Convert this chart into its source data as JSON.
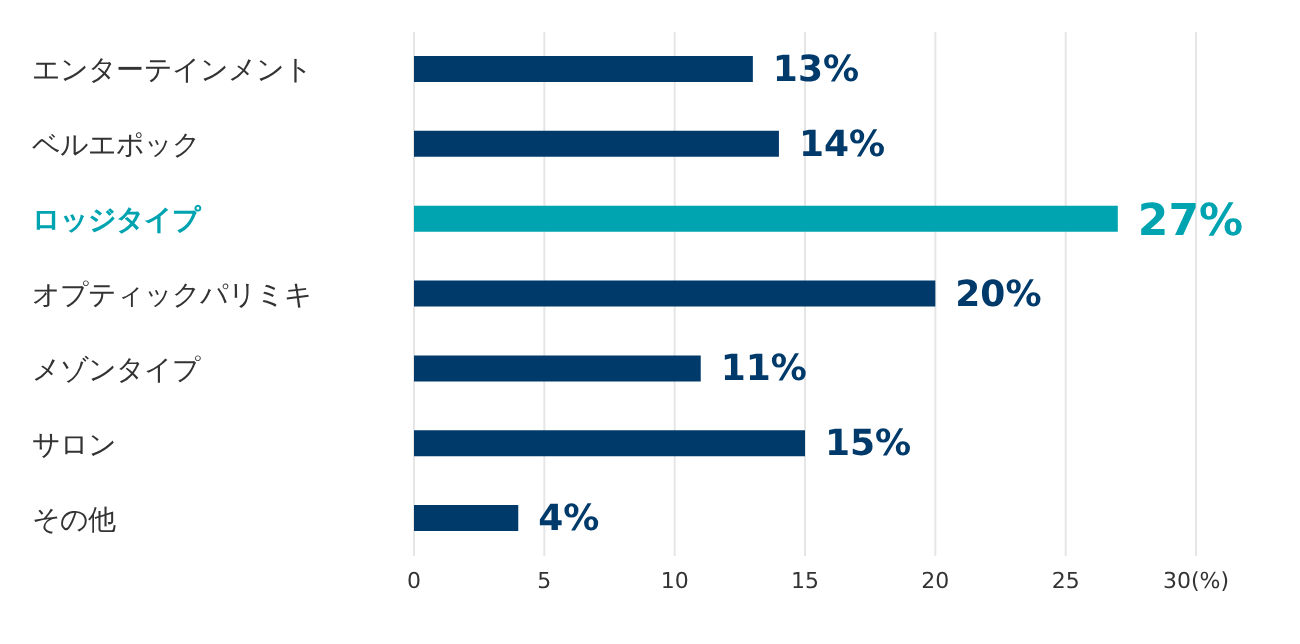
{
  "chart_data": {
    "type": "bar",
    "orientation": "horizontal",
    "categories": [
      "エンターテインメント",
      "ベルエポック",
      "ロッジタイプ",
      "オプティックパリミキ",
      "メゾンタイプ",
      "サロン",
      "その他"
    ],
    "values": [
      13,
      14,
      27,
      20,
      11,
      15,
      4
    ],
    "value_labels": [
      "13%",
      "14%",
      "27%",
      "20%",
      "11%",
      "15%",
      "4%"
    ],
    "colors": [
      "#003a6b",
      "#003a6b",
      "#00a3b0",
      "#003a6b",
      "#003a6b",
      "#003a6b",
      "#003a6b"
    ],
    "xlim": [
      0,
      30
    ],
    "xticks": [
      0,
      5,
      10,
      15,
      20,
      25,
      {
        "value": 30,
        "label": "30(%)"
      }
    ],
    "grid": "x"
  }
}
